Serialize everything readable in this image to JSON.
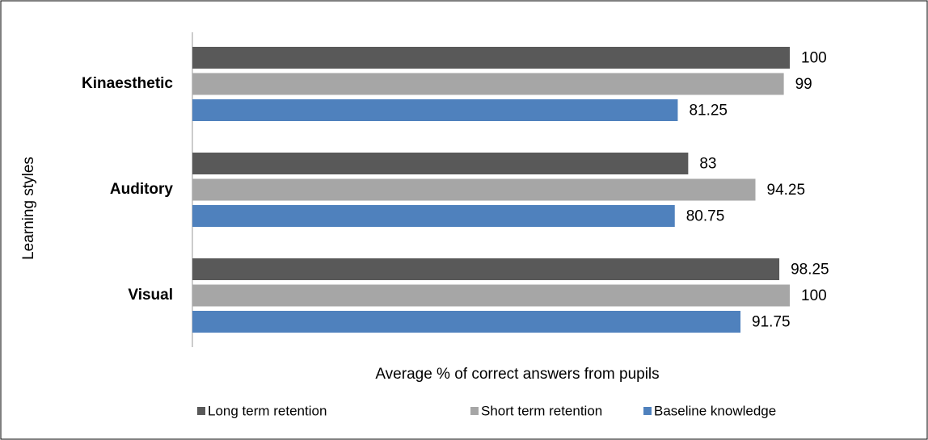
{
  "chart_data": {
    "type": "bar",
    "orientation": "horizontal",
    "xlabel": "Average % of correct answers from pupils",
    "ylabel": "Learning styles",
    "categories": [
      "Kinaesthetic",
      "Auditory",
      "Visual"
    ],
    "series": [
      {
        "name": "Long term retention",
        "color": "#595959",
        "values": [
          100,
          83,
          98.25
        ]
      },
      {
        "name": "Short term retention",
        "color": "#a6a6a6",
        "values": [
          99,
          94.25,
          100
        ]
      },
      {
        "name": "Baseline knowledge",
        "color": "#4f81bd",
        "values": [
          81.25,
          80.75,
          91.75
        ]
      }
    ],
    "xlim": [
      0,
      100
    ],
    "legend": "bottom"
  }
}
